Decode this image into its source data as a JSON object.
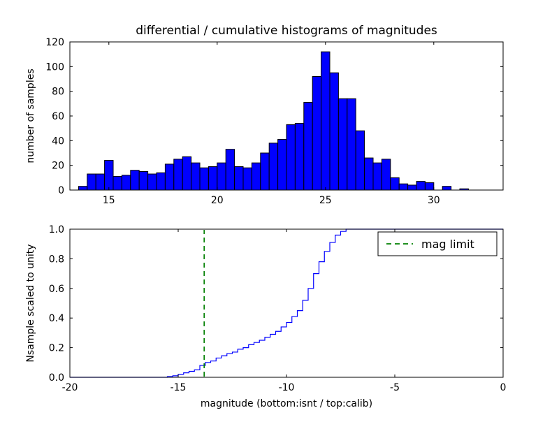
{
  "figure": {
    "title": "differential / cumulative histograms of magnitudes",
    "xlabel": "magnitude (bottom:isnt / top:calib)",
    "colors": {
      "bar_fill": "#0000ff",
      "bar_edge": "#000000",
      "step_line": "#0000ff",
      "mag_limit_line": "#008000",
      "axis": "#000000",
      "background": "#ffffff"
    }
  },
  "chart_data": [
    {
      "type": "bar",
      "title": "differential / cumulative histograms of magnitudes",
      "ylabel": "number of samples",
      "xlabel": "",
      "xlim": [
        13.2,
        33.2
      ],
      "ylim": [
        0,
        120
      ],
      "xticks": [
        15,
        20,
        25,
        30
      ],
      "yticks": [
        0,
        20,
        40,
        60,
        80,
        100,
        120
      ],
      "bin_start": 13.6,
      "bin_width": 0.4,
      "values": [
        3,
        13,
        13,
        24,
        11,
        12,
        16,
        15,
        13,
        14,
        21,
        25,
        27,
        22,
        18,
        19,
        22,
        33,
        19,
        18,
        22,
        30,
        38,
        41,
        53,
        54,
        71,
        92,
        112,
        95,
        74,
        74,
        48,
        26,
        22,
        25,
        10,
        5,
        4,
        7,
        6,
        0,
        3,
        0,
        1
      ]
    },
    {
      "type": "line",
      "title": "",
      "ylabel": "Nsample scaled to unity",
      "xlabel": "magnitude (bottom:isnt / top:calib)",
      "xlim": [
        -20,
        0
      ],
      "ylim": [
        0,
        1
      ],
      "xticks": [
        -20,
        -15,
        -10,
        -5,
        0
      ],
      "yticks": [
        0.0,
        0.2,
        0.4,
        0.6,
        0.8,
        1.0
      ],
      "ytick_decimals": 1,
      "step": {
        "x_start": -15.5,
        "dx": 0.25,
        "fractions": [
          0.005,
          0.01,
          0.02,
          0.03,
          0.04,
          0.05,
          0.08,
          0.1,
          0.11,
          0.13,
          0.145,
          0.16,
          0.17,
          0.19,
          0.2,
          0.22,
          0.235,
          0.25,
          0.27,
          0.29,
          0.31,
          0.34,
          0.37,
          0.41,
          0.45,
          0.52,
          0.6,
          0.7,
          0.78,
          0.85,
          0.91,
          0.96,
          0.985,
          1.0
        ]
      },
      "mag_limit_x": -13.8,
      "legend": {
        "label": "mag limit"
      }
    }
  ]
}
